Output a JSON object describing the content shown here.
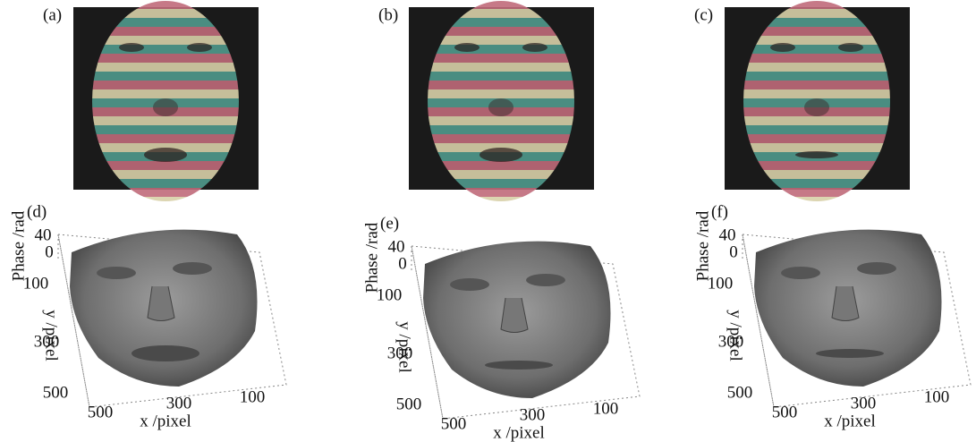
{
  "photos": [
    {
      "label": "(a)"
    },
    {
      "label": "(b)"
    },
    {
      "label": "(c)"
    }
  ],
  "plots": [
    {
      "label": "(d)",
      "z_label": "Phase /rad",
      "z_ticks": [
        40,
        0
      ],
      "y_label": "y /pixel",
      "y_ticks": [
        100,
        300,
        500
      ],
      "x_label": "x /pixel",
      "x_ticks": [
        500,
        300,
        100
      ]
    },
    {
      "label": "(e)",
      "z_label": "Phase /rad",
      "z_ticks": [
        40,
        0
      ],
      "y_label": "y /pixel",
      "y_ticks": [
        100,
        300,
        500
      ],
      "x_label": "x /pixel",
      "x_ticks": [
        500,
        300,
        100
      ]
    },
    {
      "label": "(f)",
      "z_label": "Phase /rad",
      "z_ticks": [
        40,
        0
      ],
      "y_label": "y /pixel",
      "y_ticks": [
        100,
        300,
        500
      ],
      "x_label": "x /pixel",
      "x_ticks": [
        500,
        300,
        100
      ]
    }
  ]
}
